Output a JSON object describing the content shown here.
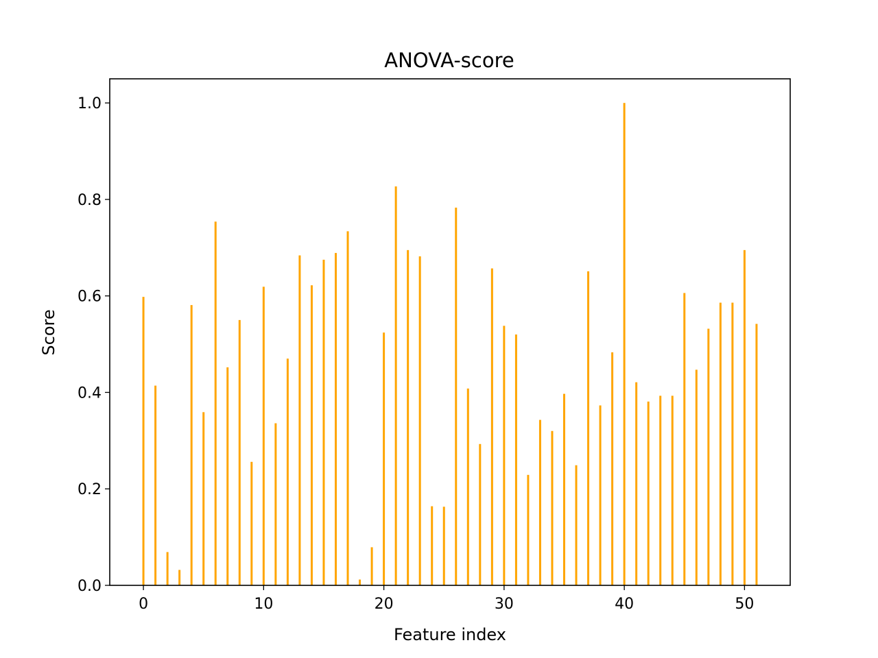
{
  "chart_data": {
    "type": "bar",
    "title": "ANOVA-score",
    "xlabel": "Feature index",
    "ylabel": "Score",
    "xlim": [
      -2.8,
      53.8
    ],
    "ylim": [
      0,
      1.05
    ],
    "xticks": [
      0,
      10,
      20,
      30,
      40,
      50
    ],
    "xtick_labels": [
      "0",
      "10",
      "20",
      "30",
      "40",
      "50"
    ],
    "yticks": [
      0.0,
      0.2,
      0.4,
      0.6,
      0.8,
      1.0
    ],
    "ytick_labels": [
      "0.0",
      "0.2",
      "0.4",
      "0.6",
      "0.8",
      "1.0"
    ],
    "grid": false,
    "bar_color": "#ffa500",
    "x": [
      0,
      1,
      2,
      3,
      4,
      5,
      6,
      7,
      8,
      9,
      10,
      11,
      12,
      13,
      14,
      15,
      16,
      17,
      18,
      19,
      20,
      21,
      22,
      23,
      24,
      25,
      26,
      27,
      28,
      29,
      30,
      31,
      32,
      33,
      34,
      35,
      36,
      37,
      38,
      39,
      40,
      41,
      42,
      43,
      44,
      45,
      46,
      47,
      48,
      49,
      50,
      51
    ],
    "values": [
      0.598,
      0.414,
      0.069,
      0.032,
      0.581,
      0.359,
      0.754,
      0.452,
      0.55,
      0.256,
      0.619,
      0.336,
      0.47,
      0.684,
      0.622,
      0.675,
      0.689,
      0.734,
      0.012,
      0.079,
      0.524,
      0.827,
      0.695,
      0.682,
      0.164,
      0.163,
      0.783,
      0.408,
      0.293,
      0.657,
      0.538,
      0.52,
      0.229,
      0.343,
      0.32,
      0.397,
      0.249,
      0.651,
      0.373,
      0.483,
      1.0,
      0.421,
      0.381,
      0.393,
      0.393,
      0.606,
      0.447,
      0.532,
      0.586,
      0.586,
      0.695,
      0.542
    ]
  }
}
